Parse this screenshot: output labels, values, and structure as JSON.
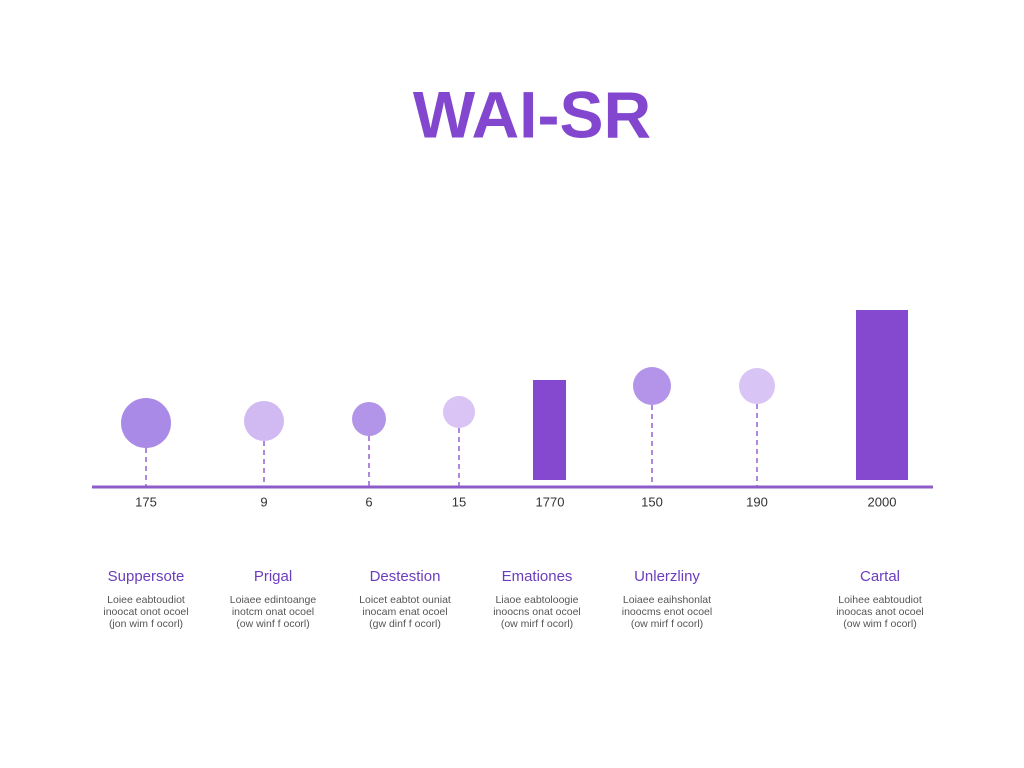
{
  "title": "WAI-SR",
  "ticks": [
    "175",
    "9",
    "6",
    "15",
    "1770",
    "150",
    "190",
    "2000"
  ],
  "items": [
    {
      "heading": "Suppersote",
      "lines": [
        "Loiee eabtoudiot",
        "inoocat onot ocoel",
        "(jon wim f ocorl)"
      ]
    },
    {
      "heading": "Prigal",
      "lines": [
        "Loiaee edintoange",
        "inotcm onat ocoel",
        "(ow winf f ocorl)"
      ]
    },
    {
      "heading": "Destestion",
      "lines": [
        "Loicet eabtot ouniat",
        "inocam enat ocoel",
        "(gw dinf f ocorl)"
      ]
    },
    {
      "heading": "Emationes",
      "lines": [
        "Liaoe eabtoloogie",
        "inoocns onat ocoel",
        "(ow mirf f ocorl)"
      ]
    },
    {
      "heading": "Unlerzliny",
      "lines": [
        "Loiaee eaihshonlat",
        "inoocms enot ocoel",
        "(ow mirf f ocorl)"
      ]
    },
    {
      "heading": "Cartal",
      "lines": [
        "Loihee eabtoudiot",
        "inoocas anot ocoel",
        "(ow wim f ocorl)"
      ]
    }
  ]
}
